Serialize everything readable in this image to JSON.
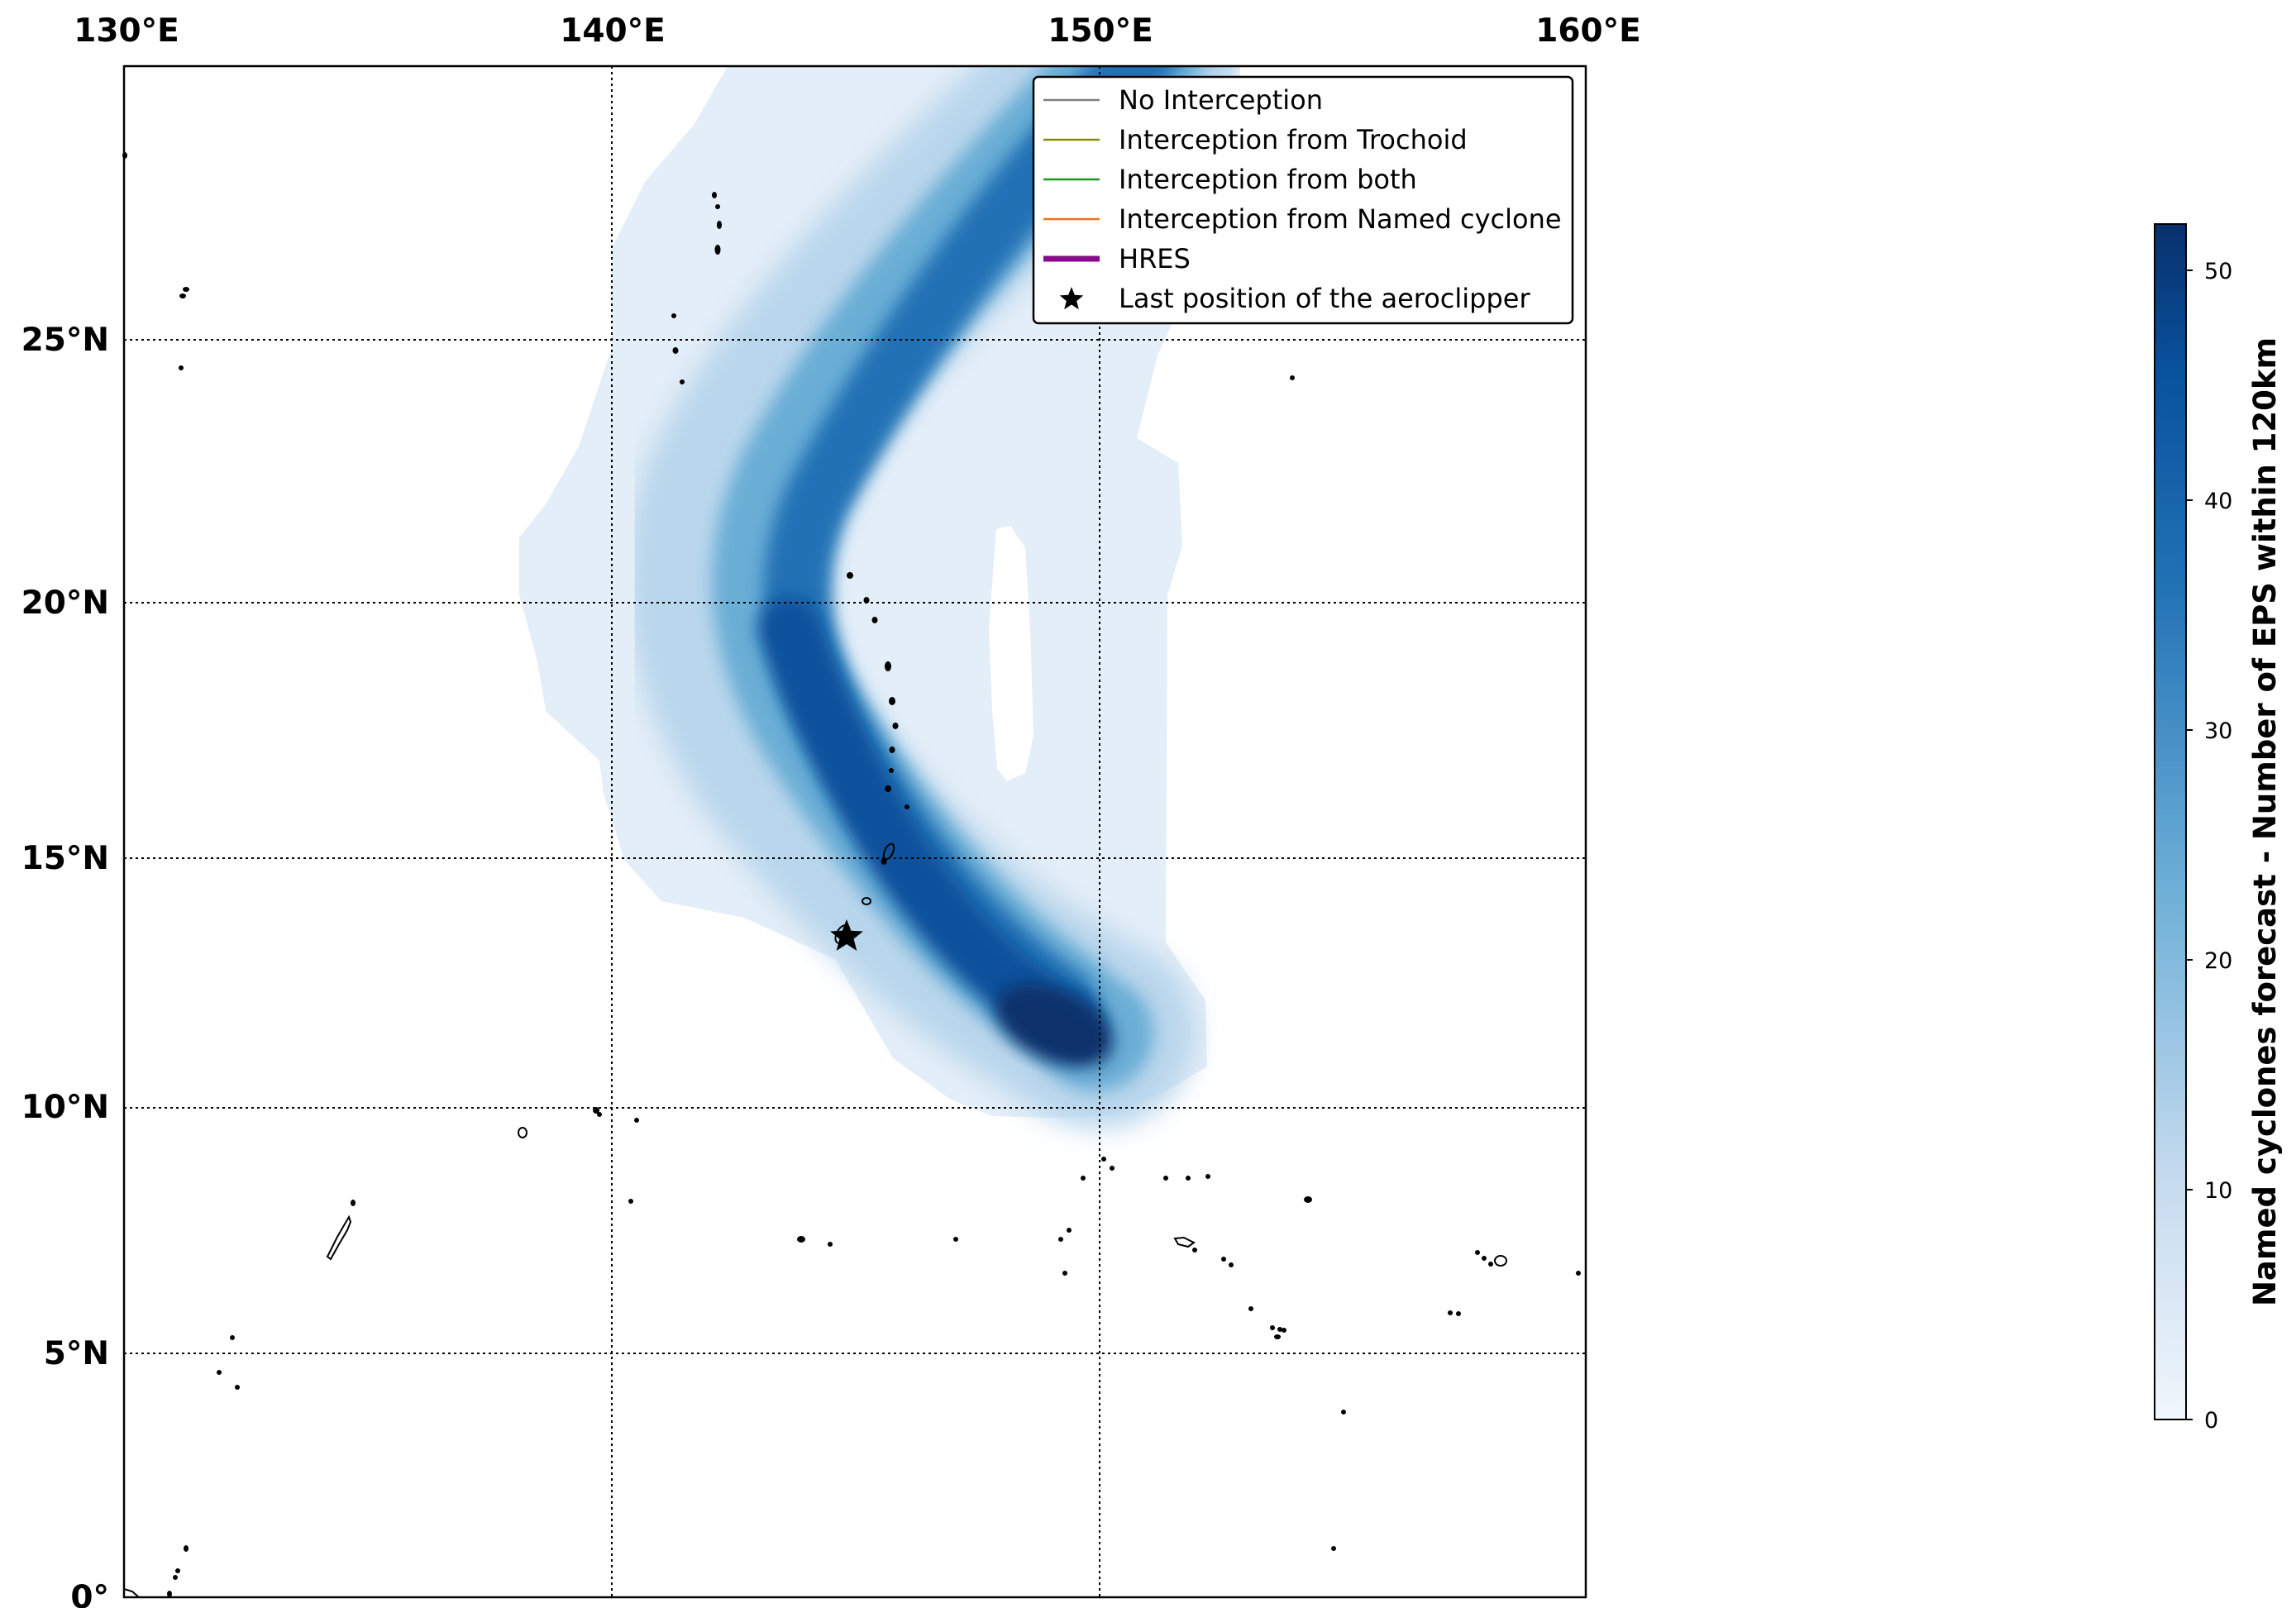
{
  "map": {
    "x_axis_ticks": [
      "130°E",
      "140°E",
      "150°E",
      "160°E"
    ],
    "y_axis_ticks": [
      "0°",
      "5°N",
      "10°N",
      "15°N",
      "20°N",
      "25°N"
    ],
    "extent": {
      "lon_min": 130,
      "lon_max": 160,
      "lat_min": 0,
      "lat_max": 30.5
    },
    "gridlines": true,
    "marker": {
      "symbol": "star",
      "lon": 144.8,
      "lat": 13.5,
      "color": "#000000"
    }
  },
  "legend": {
    "placement": "top-right",
    "items": [
      {
        "label": "No Interception",
        "color": "#808080",
        "style": "thin-line"
      },
      {
        "label": "Interception from Trochoid",
        "color": "#8a8a00",
        "style": "thin-line"
      },
      {
        "label": "Interception from both",
        "color": "#1a9a1a",
        "style": "thin-line"
      },
      {
        "label": "Interception from Named cyclone",
        "color": "#f07020",
        "style": "thin-line"
      },
      {
        "label": "HRES",
        "color": "#8b0a8b",
        "style": "thick-line"
      },
      {
        "label": "Last position of the aeroclipper",
        "color": "#000000",
        "style": "star"
      }
    ]
  },
  "colorbar": {
    "label": "Named cyclones forecast - Number of EPS within 120km",
    "ticks": [
      "0",
      "10",
      "20",
      "30",
      "40",
      "50"
    ],
    "range": [
      0,
      52
    ],
    "colors": {
      "low": "#e3eef8",
      "high": "#08306b"
    }
  }
}
